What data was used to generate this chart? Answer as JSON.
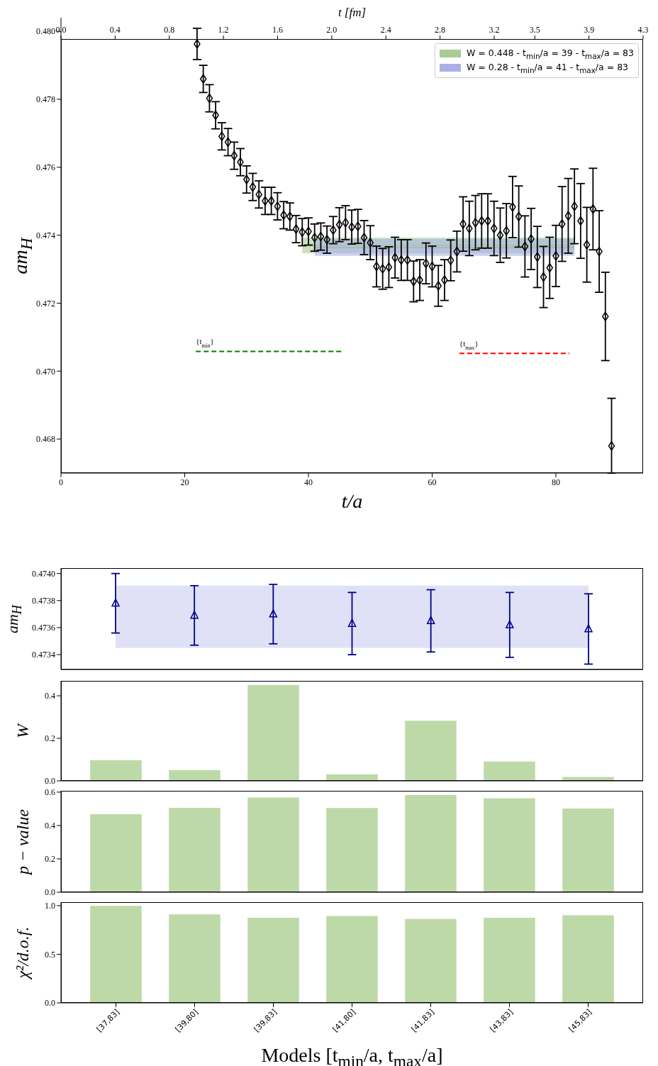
{
  "chart_data": [
    {
      "type": "scatter",
      "xlabel": "t/a",
      "ylabel": "am$_{H}$",
      "x2label": "t [fm]",
      "xlim": [
        0,
        94.1
      ],
      "xticks": [
        0,
        20,
        40,
        60,
        80
      ],
      "x2lim": [
        0,
        4.3
      ],
      "x2ticks": [
        {
          "value": 0,
          "label": "0.0"
        },
        0.4,
        0.8,
        1.2,
        1.6,
        {
          "value": 2,
          "label": "2.0"
        },
        2.4,
        2.8,
        3.2,
        3.5,
        3.9,
        4.3
      ],
      "ylim": [
        0.467,
        0.4804
      ],
      "yticks": [
        0.468,
        {
          "value": 0.47,
          "label": "0.470"
        },
        0.472,
        0.474,
        0.476,
        0.478,
        {
          "value": 0.48,
          "label": "0.480"
        }
      ],
      "legend": "top right",
      "series": [
        {
          "color": "#000000",
          "marker": "diamond",
          "x": [
            22,
            23,
            24,
            25,
            26,
            27,
            28,
            29,
            30,
            31,
            32,
            33,
            34,
            35,
            36,
            37,
            38,
            39,
            40,
            41,
            42,
            43,
            44,
            45,
            46,
            47,
            48,
            49,
            50,
            51,
            52,
            53,
            54,
            55,
            56,
            57,
            58,
            59,
            60,
            61,
            62,
            63,
            64,
            65,
            66,
            67,
            68,
            69,
            70,
            71,
            72,
            73,
            74,
            75,
            76,
            77,
            78,
            79,
            80,
            81,
            82,
            83,
            84,
            85,
            86,
            87,
            88,
            89
          ],
          "values": [
            0.47963,
            0.4786,
            0.47803,
            0.47753,
            0.47691,
            0.47674,
            0.47634,
            0.47615,
            0.47564,
            0.47542,
            0.4752,
            0.47501,
            0.47501,
            0.47485,
            0.47459,
            0.47455,
            0.47418,
            0.47409,
            0.47411,
            0.47393,
            0.47396,
            0.47387,
            0.47415,
            0.47431,
            0.47437,
            0.47424,
            0.47426,
            0.47393,
            0.47378,
            0.47308,
            0.47301,
            0.47306,
            0.47334,
            0.47327,
            0.47327,
            0.47264,
            0.47268,
            0.47317,
            0.47308,
            0.47251,
            0.47268,
            0.47326,
            0.47352,
            0.47433,
            0.4742,
            0.47437,
            0.47442,
            0.47442,
            0.4742,
            0.474,
            0.47413,
            0.47483,
            0.47455,
            0.47367,
            0.47389,
            0.47336,
            0.47277,
            0.47304,
            0.47339,
            0.47433,
            0.47457,
            0.47485,
            0.47442,
            0.47372,
            0.47477,
            0.47352,
            0.47161,
            0.4678
          ],
          "errors": [
            0.00046,
            0.0004,
            0.0004,
            0.0004,
            0.0004,
            0.0004,
            0.0004,
            0.0004,
            0.0004,
            0.0004,
            0.0004,
            0.0004,
            0.0004,
            0.0004,
            0.0004,
            0.0004,
            0.0004,
            0.0004,
            0.0004,
            0.0004,
            0.0004,
            0.0004,
            0.0004,
            0.0005,
            0.0005,
            0.0005,
            0.0005,
            0.0005,
            0.0005,
            0.0006,
            0.0006,
            0.0006,
            0.0006,
            0.0006,
            0.0006,
            0.0006,
            0.0006,
            0.0006,
            0.0006,
            0.0006,
            0.0006,
            0.0006,
            0.0006,
            0.0008,
            0.0008,
            0.0008,
            0.0008,
            0.0008,
            0.0008,
            0.0008,
            0.0008,
            0.0009,
            0.0009,
            0.0009,
            0.0009,
            0.0009,
            0.0009,
            0.0009,
            0.0009,
            0.0011,
            0.0011,
            0.0011,
            0.0011,
            0.0011,
            0.0012,
            0.0012,
            0.0013,
            [
              0.467,
              0.4692
            ]
          ]
        },
        {
          "type": "line",
          "name": "W = 0.448 - t$_{min}$/a = 39 - t$_{max}$/a = 83",
          "color": "#a8cc94",
          "x": [
            39,
            83
          ],
          "values": [
            0.4737,
            0.4737
          ],
          "lower": [
            0.47347,
            0.47347
          ],
          "upper": [
            0.47393,
            0.47393
          ]
        },
        {
          "type": "line",
          "name": "W = 0.28 - t$_{min}$/a = 41 - t$_{max}$/a = 83",
          "color": "#aab0e6",
          "x": [
            41,
            83
          ],
          "values": [
            0.47364,
            0.47364
          ],
          "lower": [
            0.47339,
            0.47339
          ],
          "upper": [
            0.47389,
            0.47389
          ]
        },
        {
          "type": "line",
          "name": "{t$_{min}$}",
          "color": "#008000",
          "x": [
            21.8,
            45.5
          ],
          "values": [
            0.47058,
            0.47058
          ],
          "line_style": "dashed"
        },
        {
          "type": "line",
          "name": "{t$_{max}$}",
          "color": "#ff0000",
          "x": [
            64.4,
            82.2
          ],
          "values": [
            0.47052,
            0.47052
          ],
          "line_style": "dashed"
        }
      ]
    },
    {
      "type": "scatter",
      "ylabel": "am$_{H}$",
      "categories": [
        null,
        null,
        null,
        null,
        null,
        null,
        null
      ],
      "values": [
        0.47378,
        0.47369,
        0.4737,
        0.47363,
        0.47365,
        0.47362,
        0.47359
      ],
      "errors": [
        0.00022,
        0.00022,
        0.00022,
        0.00023,
        0.00023,
        0.00024,
        0.00026
      ],
      "color": "#00008b",
      "marker": "triangle",
      "bands": [
        {
          "axis": "y",
          "from": 0.47345,
          "to": 0.47391,
          "color": "#e0e0f6"
        }
      ],
      "ylim": [
        0.47329,
        0.47404
      ],
      "yticks": [
        0.4734,
        0.4736,
        0.4738,
        {
          "value": 0.474,
          "label": "0.4740"
        }
      ],
      "tick_labels": "y"
    },
    {
      "type": "bar",
      "ylabel": "W",
      "categories": [
        null,
        null,
        null,
        null,
        null,
        null,
        null
      ],
      "values": [
        0.095,
        0.048,
        0.448,
        0.028,
        0.28,
        0.088,
        0.016
      ],
      "color": "#bdd9a8",
      "ylim": [
        0,
        0.47
      ],
      "yticks": [
        {
          "value": 0,
          "label": "0.0"
        },
        0.2,
        0.4
      ],
      "tick_labels": "y"
    },
    {
      "type": "bar",
      "ylabel": "p − value",
      "categories": [
        null,
        null,
        null,
        null,
        null,
        null,
        null
      ],
      "values": [
        0.464,
        0.503,
        0.564,
        0.502,
        0.579,
        0.56,
        0.499
      ],
      "color": "#bdd9a8",
      "ylim": [
        0,
        0.608
      ],
      "yticks": [
        {
          "value": 0,
          "label": "0.0"
        },
        0.2,
        0.4,
        0.6
      ],
      "tick_labels": "y"
    },
    {
      "type": "bar",
      "ylabel": "χ²/d.o.f.",
      "xlabel": "Models [t$_{min}$/a, t$_{max}$/a]",
      "categories": [
        "[37,83]",
        "[39,80]",
        "[39,83]",
        "[41,80]",
        "[41,83]",
        "[43,83]",
        "[45,83]"
      ],
      "values": [
        0.993,
        0.905,
        0.87,
        0.888,
        0.858,
        0.87,
        0.896
      ],
      "color": "#bdd9a8",
      "ylim": [
        0,
        1.036
      ],
      "yticks": [
        {
          "value": 0,
          "label": "0.0"
        },
        0.5,
        {
          "value": 1,
          "label": "1.0"
        }
      ]
    }
  ]
}
